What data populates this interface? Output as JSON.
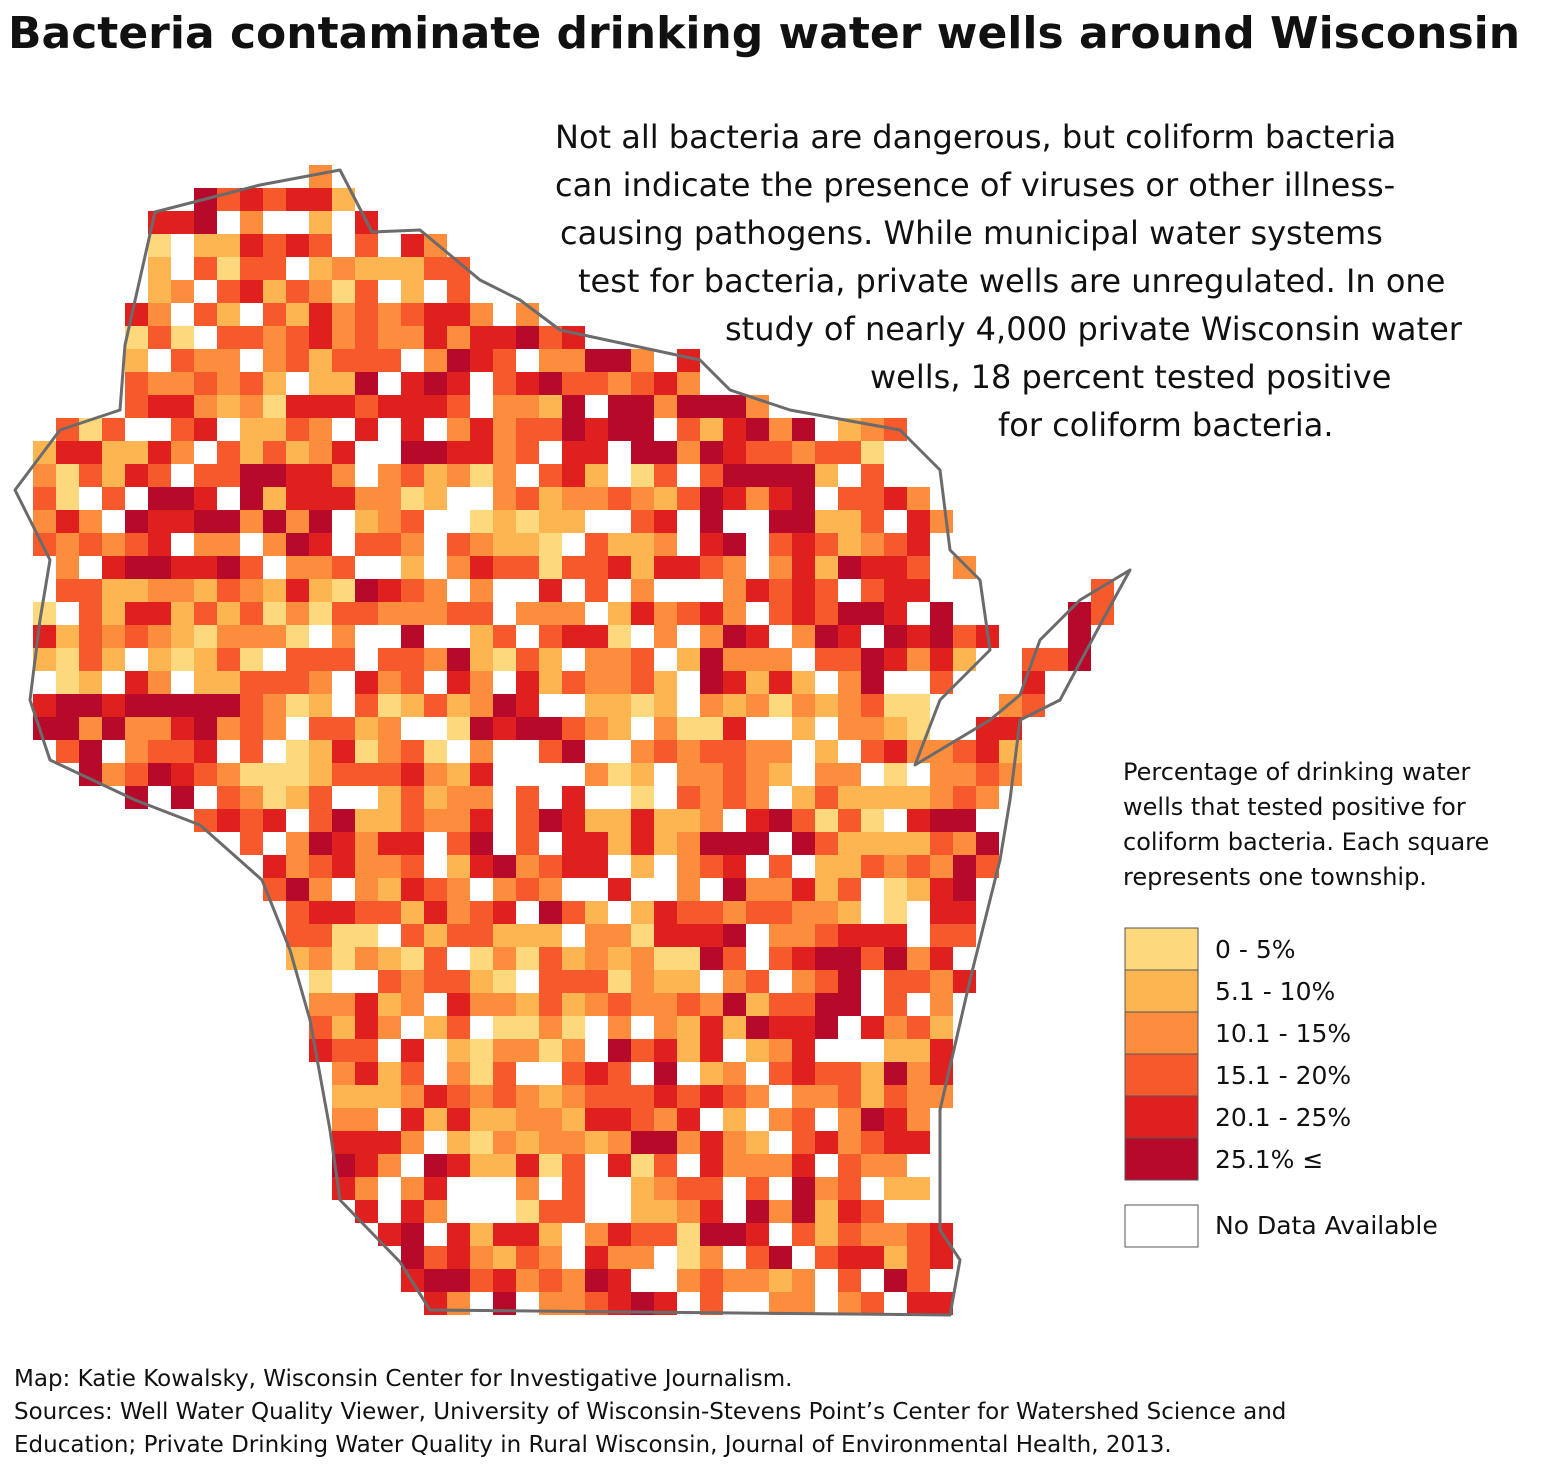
{
  "title": "Bacteria contaminate drinking water wells around Wisconsin",
  "description": [
    "Not all bacteria are dangerous, but coliform bacteria",
    "can indicate the presence of viruses or other illness-",
    "causing pathogens. While municipal water systems",
    "test for bacteria, private wells are unregulated. In one",
    "study of nearly 4,000 private Wisconsin water",
    "wells, 18 percent tested positive",
    "for coliform bacteria."
  ],
  "legend": {
    "title": [
      "Percentage of drinking water",
      "wells that tested positive for",
      "coliform bacteria. Each square",
      "represents one township."
    ],
    "items": [
      {
        "label": "0 - 5%",
        "color": "#fdd87c"
      },
      {
        "label": "5.1 - 10%",
        "color": "#fdb552"
      },
      {
        "label": "10.1 - 15%",
        "color": "#fc8d3c"
      },
      {
        "label": "15.1 - 20%",
        "color": "#f6592b"
      },
      {
        "label": "20.1 - 25%",
        "color": "#e0201e"
      },
      {
        "label": "25.1% ≤",
        "color": "#b70a2b"
      }
    ],
    "no_data": {
      "label": "No Data Available",
      "color": "#ffffff"
    }
  },
  "credits": [
    "Map: Katie Kowalsky, Wisconsin Center for Investigative Journalism.",
    "Sources: Well Water Quality Viewer, University of Wisconsin-Stevens Point’s Center for Watershed Science and",
    "Education; Private Drinking Water Quality in Rural Wisconsin, Journal of Environmental Health, 2013."
  ]
}
